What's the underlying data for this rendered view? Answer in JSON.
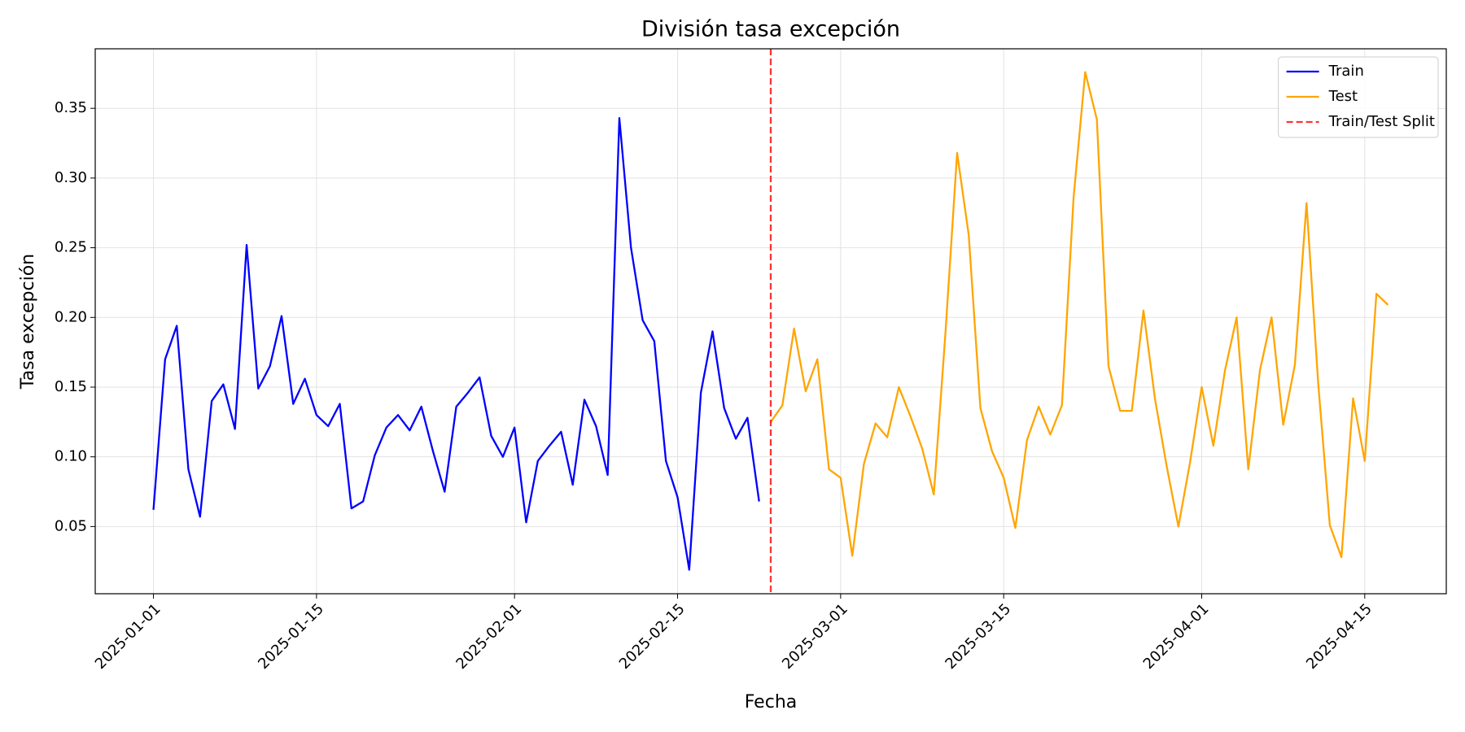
{
  "chart_data": {
    "type": "line",
    "title": "División tasa excepción",
    "xlabel": "Fecha",
    "ylabel": "Tasa excepción",
    "series": [
      {
        "name": "Train",
        "color": "#0000ff",
        "x": [
          "2025-01-01",
          "2025-01-02",
          "2025-01-03",
          "2025-01-04",
          "2025-01-05",
          "2025-01-06",
          "2025-01-07",
          "2025-01-08",
          "2025-01-09",
          "2025-01-10",
          "2025-01-11",
          "2025-01-12",
          "2025-01-13",
          "2025-01-14",
          "2025-01-15",
          "2025-01-16",
          "2025-01-17",
          "2025-01-18",
          "2025-01-19",
          "2025-01-20",
          "2025-01-21",
          "2025-01-22",
          "2025-01-23",
          "2025-01-24",
          "2025-01-25",
          "2025-01-26",
          "2025-01-27",
          "2025-01-28",
          "2025-01-29",
          "2025-01-30",
          "2025-01-31",
          "2025-02-01",
          "2025-02-02",
          "2025-02-03",
          "2025-02-04",
          "2025-02-05",
          "2025-02-06",
          "2025-02-07",
          "2025-02-08",
          "2025-02-09",
          "2025-02-10",
          "2025-02-11",
          "2025-02-12",
          "2025-02-13",
          "2025-02-14",
          "2025-02-15",
          "2025-02-16",
          "2025-02-17",
          "2025-02-18",
          "2025-02-19",
          "2025-02-20",
          "2025-02-21",
          "2025-02-22"
        ],
        "values": [
          0.062,
          0.17,
          0.194,
          0.091,
          0.057,
          0.14,
          0.152,
          0.12,
          0.252,
          0.149,
          0.165,
          0.201,
          0.138,
          0.156,
          0.13,
          0.122,
          0.138,
          0.063,
          0.068,
          0.101,
          0.121,
          0.13,
          0.119,
          0.136,
          0.104,
          0.075,
          0.136,
          0.146,
          0.157,
          0.115,
          0.1,
          0.121,
          0.053,
          0.097,
          0.108,
          0.118,
          0.08,
          0.141,
          0.122,
          0.087,
          0.343,
          0.25,
          0.198,
          0.183,
          0.097,
          0.071,
          0.019,
          0.146,
          0.19,
          0.135,
          0.113,
          0.128,
          0.068
        ]
      },
      {
        "name": "Test",
        "color": "#ffa500",
        "x": [
          "2025-02-23",
          "2025-02-24",
          "2025-02-25",
          "2025-02-26",
          "2025-02-27",
          "2025-02-28",
          "2025-03-01",
          "2025-03-02",
          "2025-03-03",
          "2025-03-04",
          "2025-03-05",
          "2025-03-06",
          "2025-03-07",
          "2025-03-08",
          "2025-03-09",
          "2025-03-10",
          "2025-03-11",
          "2025-03-12",
          "2025-03-13",
          "2025-03-14",
          "2025-03-15",
          "2025-03-16",
          "2025-03-17",
          "2025-03-18",
          "2025-03-19",
          "2025-03-20",
          "2025-03-21",
          "2025-03-22",
          "2025-03-23",
          "2025-03-24",
          "2025-03-25",
          "2025-03-26",
          "2025-03-27",
          "2025-03-28",
          "2025-03-29",
          "2025-03-30",
          "2025-03-31",
          "2025-04-01",
          "2025-04-02",
          "2025-04-03",
          "2025-04-04",
          "2025-04-05",
          "2025-04-06",
          "2025-04-07",
          "2025-04-08",
          "2025-04-09",
          "2025-04-10",
          "2025-04-11",
          "2025-04-12",
          "2025-04-13",
          "2025-04-14",
          "2025-04-15",
          "2025-04-16",
          "2025-04-17"
        ],
        "values": [
          0.125,
          0.137,
          0.192,
          0.147,
          0.17,
          0.091,
          0.085,
          0.029,
          0.095,
          0.124,
          0.114,
          0.15,
          0.129,
          0.106,
          0.073,
          0.189,
          0.318,
          0.259,
          0.135,
          0.104,
          0.085,
          0.049,
          0.112,
          0.136,
          0.116,
          0.137,
          0.286,
          0.376,
          0.342,
          0.165,
          0.133,
          0.133,
          0.205,
          0.141,
          0.093,
          0.05,
          0.096,
          0.15,
          0.108,
          0.162,
          0.2,
          0.091,
          0.162,
          0.2,
          0.123,
          0.166,
          0.282,
          0.153,
          0.051,
          0.028,
          0.142,
          0.097,
          0.217,
          0.209
        ]
      }
    ],
    "vlines": [
      {
        "x": "2025-02-23",
        "name": "Train/Test Split",
        "color": "#ff0000",
        "dash": true
      }
    ],
    "xlim": [
      "2024-12-27",
      "2025-04-22"
    ],
    "xticks": [
      "2025-01-01",
      "2025-01-15",
      "2025-02-01",
      "2025-02-15",
      "2025-03-01",
      "2025-03-15",
      "2025-04-01",
      "2025-04-15"
    ],
    "ylim": [
      0.0018,
      0.3927
    ],
    "yticks": [
      0.05,
      {
        "value": 0.1,
        "label": "0.10"
      },
      0.15,
      {
        "value": 0.2,
        "label": "0.20"
      },
      0.25,
      {
        "value": 0.3,
        "label": "0.30"
      },
      0.35
    ],
    "grid": true,
    "legend": "upper right"
  }
}
